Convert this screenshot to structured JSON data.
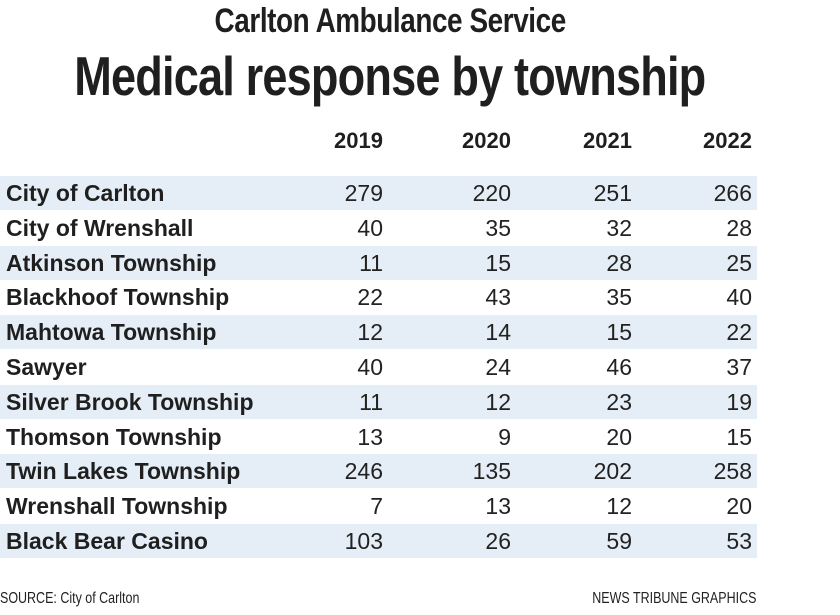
{
  "chart_data": {
    "type": "table",
    "title": "Carlton Ambulance Service",
    "subtitle": "Medical response by township",
    "columns": [
      "2019",
      "2020",
      "2021",
      "2022"
    ],
    "rows": [
      {
        "name": "City of Carlton",
        "values": [
          279,
          220,
          251,
          266
        ]
      },
      {
        "name": "City of Wrenshall",
        "values": [
          40,
          35,
          32,
          28
        ]
      },
      {
        "name": "Atkinson Township",
        "values": [
          11,
          15,
          28,
          25
        ]
      },
      {
        "name": "Blackhoof Township",
        "values": [
          22,
          43,
          35,
          40
        ]
      },
      {
        "name": "Mahtowa Township",
        "values": [
          12,
          14,
          15,
          22
        ]
      },
      {
        "name": "Sawyer",
        "values": [
          40,
          24,
          46,
          37
        ]
      },
      {
        "name": "Silver Brook Township",
        "values": [
          11,
          12,
          23,
          19
        ]
      },
      {
        "name": "Thomson Township",
        "values": [
          13,
          9,
          20,
          15
        ]
      },
      {
        "name": "Twin Lakes Township",
        "values": [
          246,
          135,
          202,
          258
        ]
      },
      {
        "name": "Wrenshall Township",
        "values": [
          7,
          13,
          12,
          20
        ]
      },
      {
        "name": "Black Bear Casino",
        "values": [
          103,
          26,
          59,
          53
        ]
      }
    ],
    "stripe_color": "#e5eef6"
  },
  "footer": {
    "source": "SOURCE: City of Carlton",
    "credit": "NEWS TRIBUNE GRAPHICS"
  }
}
